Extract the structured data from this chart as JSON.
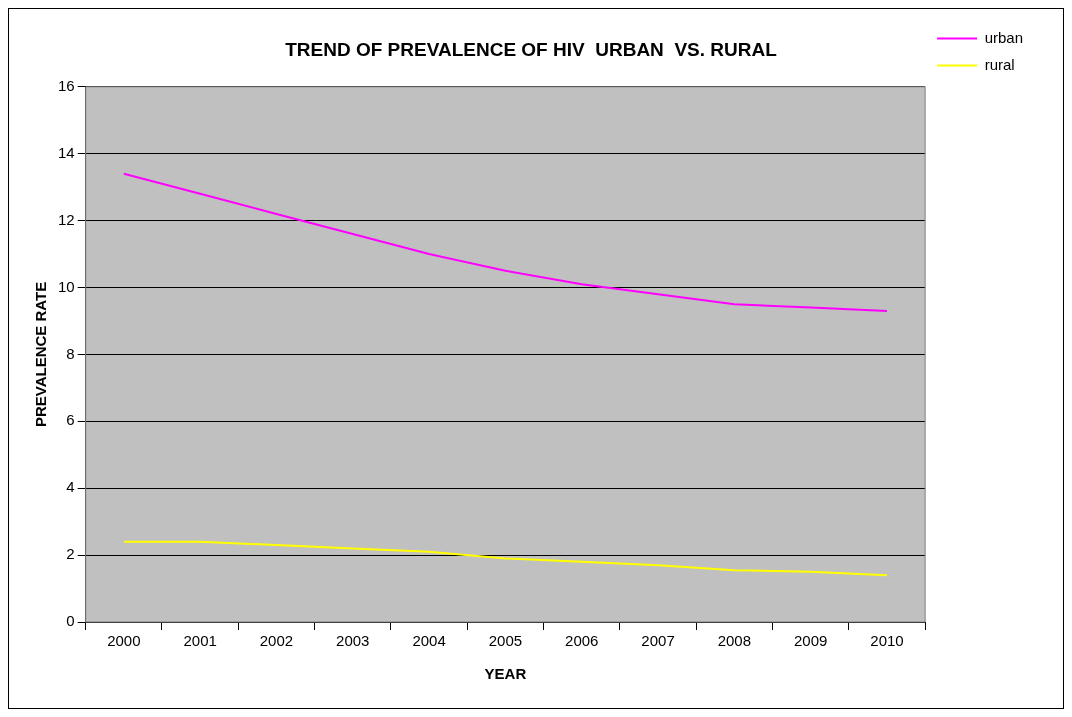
{
  "chart_data": {
    "type": "line",
    "title": "TREND OF PREVALENCE OF HIV  URBAN  VS. RURAL",
    "xlabel": "YEAR",
    "ylabel": "PREVALENCE RATE",
    "categories": [
      "2000",
      "2001",
      "2002",
      "2003",
      "2004",
      "2005",
      "2006",
      "2007",
      "2008",
      "2009",
      "2010"
    ],
    "series": [
      {
        "name": "urban",
        "color": "#ff00ff",
        "values": [
          13.4,
          12.8,
          12.2,
          11.6,
          11.0,
          10.5,
          10.1,
          9.8,
          9.5,
          9.4,
          9.3
        ]
      },
      {
        "name": "rural",
        "color": "#ffff00",
        "values": [
          2.4,
          2.4,
          2.3,
          2.2,
          2.1,
          1.9,
          1.8,
          1.7,
          1.55,
          1.5,
          1.4
        ]
      }
    ],
    "ylim": [
      0,
      16
    ],
    "yticks": [
      0,
      2,
      4,
      6,
      8,
      10,
      12,
      14,
      16
    ],
    "grid": "y",
    "legend": "right",
    "marker": "none",
    "line_style": "solid"
  }
}
